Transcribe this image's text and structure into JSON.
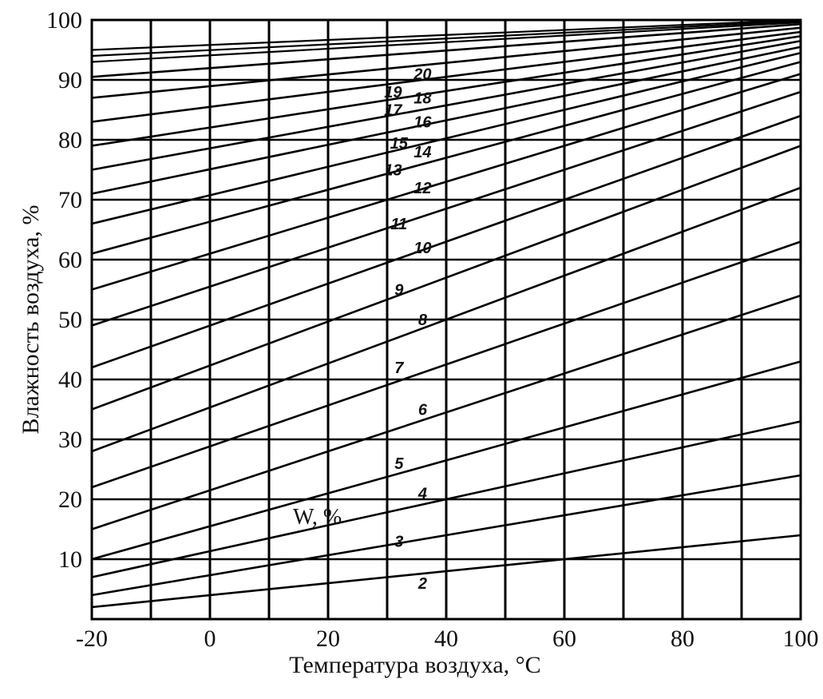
{
  "chart_data": {
    "type": "line",
    "title": "",
    "xlabel": "Температура воздуха, °С",
    "ylabel": "Влажность воздуха, %",
    "xlim": [
      -20,
      100
    ],
    "ylim": [
      0,
      100
    ],
    "xticks": [
      -20,
      -10,
      0,
      10,
      20,
      30,
      40,
      50,
      60,
      70,
      80,
      90,
      100
    ],
    "xtick_labels": [
      "-20",
      "0",
      "20",
      "40",
      "60",
      "80",
      "100"
    ],
    "yticks": [
      10,
      20,
      30,
      40,
      50,
      60,
      70,
      80,
      90,
      100
    ],
    "ytick_labels": [
      "10",
      "20",
      "30",
      "40",
      "50",
      "60",
      "70",
      "80",
      "90",
      "100"
    ],
    "grid": true,
    "annotation": "W, %",
    "series": [
      {
        "name": "2",
        "x": [
          -20,
          100
        ],
        "y": [
          2.0,
          14.0
        ]
      },
      {
        "name": "3",
        "x": [
          -20,
          100
        ],
        "y": [
          4.0,
          24.0
        ]
      },
      {
        "name": "4",
        "x": [
          -20,
          100
        ],
        "y": [
          7.0,
          33.0
        ]
      },
      {
        "name": "5",
        "x": [
          -20,
          100
        ],
        "y": [
          10.0,
          43.0
        ]
      },
      {
        "name": "6",
        "x": [
          -20,
          100
        ],
        "y": [
          15.0,
          54.0
        ]
      },
      {
        "name": "7",
        "x": [
          -20,
          100
        ],
        "y": [
          22.0,
          63.0
        ]
      },
      {
        "name": "8",
        "x": [
          -20,
          100
        ],
        "y": [
          28.0,
          72.0
        ]
      },
      {
        "name": "9",
        "x": [
          -20,
          100
        ],
        "y": [
          35.0,
          79.0
        ]
      },
      {
        "name": "10",
        "x": [
          -20,
          100
        ],
        "y": [
          42.0,
          84.0
        ]
      },
      {
        "name": "11",
        "x": [
          -20,
          100
        ],
        "y": [
          49.0,
          88.0
        ]
      },
      {
        "name": "12",
        "x": [
          -20,
          100
        ],
        "y": [
          55.0,
          91.0
        ]
      },
      {
        "name": "13",
        "x": [
          -20,
          100
        ],
        "y": [
          61.0,
          93.0
        ]
      },
      {
        "name": "14",
        "x": [
          -20,
          100
        ],
        "y": [
          66.0,
          94.5
        ]
      },
      {
        "name": "15",
        "x": [
          -20,
          100
        ],
        "y": [
          71.0,
          95.5
        ]
      },
      {
        "name": "16",
        "x": [
          -20,
          100
        ],
        "y": [
          75.0,
          96.5
        ]
      },
      {
        "name": "17",
        "x": [
          -20,
          100
        ],
        "y": [
          79.0,
          97.3
        ]
      },
      {
        "name": "18",
        "x": [
          -20,
          100
        ],
        "y": [
          83.0,
          98.0
        ]
      },
      {
        "name": "19",
        "x": [
          -20,
          100
        ],
        "y": [
          87.0,
          98.7
        ]
      },
      {
        "name": "20",
        "x": [
          -20,
          100
        ],
        "y": [
          90.5,
          99.3
        ]
      }
    ],
    "extra_lines": [
      {
        "x": [
          -20,
          100
        ],
        "y": [
          93.0,
          99.6
        ]
      },
      {
        "x": [
          -20,
          100
        ],
        "y": [
          94.0,
          99.8
        ]
      },
      {
        "x": [
          -20,
          100
        ],
        "y": [
          95.0,
          100.0
        ]
      }
    ],
    "curve_label_positions": [
      {
        "text": "2",
        "x": 36,
        "y": 6
      },
      {
        "text": "3",
        "x": 32,
        "y": 13
      },
      {
        "text": "4",
        "x": 36,
        "y": 21
      },
      {
        "text": "5",
        "x": 32,
        "y": 26
      },
      {
        "text": "6",
        "x": 36,
        "y": 35
      },
      {
        "text": "7",
        "x": 32,
        "y": 42
      },
      {
        "text": "8",
        "x": 36,
        "y": 50
      },
      {
        "text": "9",
        "x": 32,
        "y": 55
      },
      {
        "text": "10",
        "x": 36,
        "y": 62
      },
      {
        "text": "11",
        "x": 32,
        "y": 66
      },
      {
        "text": "12",
        "x": 36,
        "y": 72
      },
      {
        "text": "13",
        "x": 31,
        "y": 75
      },
      {
        "text": "14",
        "x": 36,
        "y": 78
      },
      {
        "text": "15",
        "x": 32,
        "y": 79.5
      },
      {
        "text": "16",
        "x": 36,
        "y": 83
      },
      {
        "text": "17",
        "x": 31,
        "y": 85
      },
      {
        "text": "18",
        "x": 36,
        "y": 87
      },
      {
        "text": "19",
        "x": 31,
        "y": 88
      },
      {
        "text": "20",
        "x": 36,
        "y": 91
      }
    ]
  }
}
